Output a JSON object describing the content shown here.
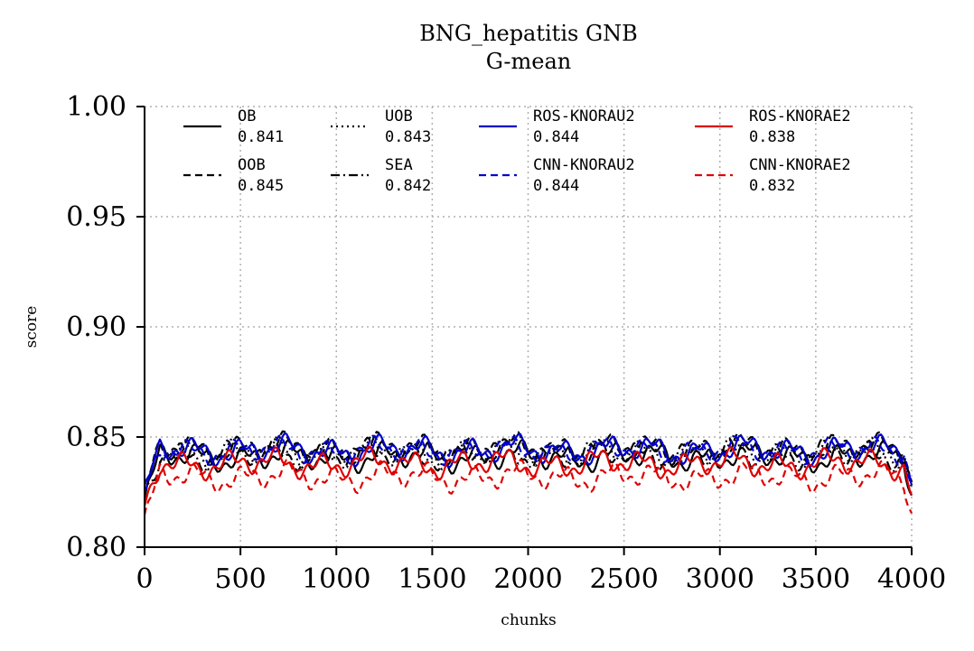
{
  "chart_data": {
    "type": "line",
    "title": "BNG_hepatitis GNB",
    "subtitle": "G-mean",
    "xlabel": "chunks",
    "ylabel": "score",
    "xlim": [
      0,
      4000
    ],
    "ylim": [
      0.8,
      1.0
    ],
    "x_ticks": [
      "0",
      "500",
      "1000",
      "1500",
      "2000",
      "2500",
      "3000",
      "3500",
      "4000"
    ],
    "y_ticks": [
      "0.80",
      "0.85",
      "0.90",
      "0.95",
      "1.00"
    ],
    "grid": true,
    "legend_position": "top",
    "series": [
      {
        "name": "OB",
        "score": "0.841",
        "color": "#000000",
        "dash": "solid",
        "mean": 0.841,
        "amp": 0.004,
        "phase": 0.3
      },
      {
        "name": "OOB",
        "score": "0.845",
        "color": "#000000",
        "dash": "dashed",
        "mean": 0.845,
        "amp": 0.004,
        "phase": 1.1
      },
      {
        "name": "UOB",
        "score": "0.843",
        "color": "#000000",
        "dash": "dotted",
        "mean": 0.843,
        "amp": 0.004,
        "phase": 2.0
      },
      {
        "name": "SEA",
        "score": "0.842",
        "color": "#000000",
        "dash": "dashdot",
        "mean": 0.842,
        "amp": 0.004,
        "phase": 2.7
      },
      {
        "name": "ROS-KNORAU2",
        "score": "0.844",
        "color": "#0000cc",
        "dash": "solid",
        "mean": 0.844,
        "amp": 0.004,
        "phase": 0.8
      },
      {
        "name": "CNN-KNORAU2",
        "score": "0.844",
        "color": "#0000cc",
        "dash": "dashed",
        "mean": 0.844,
        "amp": 0.0035,
        "phase": 1.7
      },
      {
        "name": "ROS-KNORAE2",
        "score": "0.838",
        "color": "#dd0000",
        "dash": "solid",
        "mean": 0.838,
        "amp": 0.004,
        "phase": 2.4
      },
      {
        "name": "CNN-KNORAE2",
        "score": "0.832",
        "color": "#dd0000",
        "dash": "dashed",
        "mean": 0.832,
        "amp": 0.004,
        "phase": 0.5
      }
    ]
  }
}
